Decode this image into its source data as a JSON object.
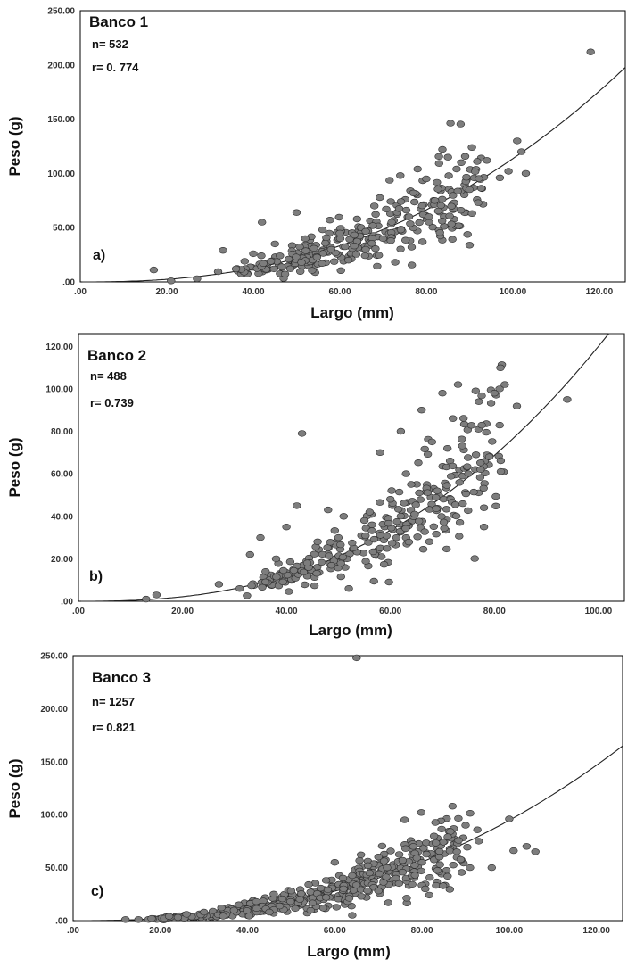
{
  "chart_data": [
    {
      "type": "scatter",
      "title": "Banco 1",
      "stats": {
        "n": "n= 532",
        "r": "r= 0. 774"
      },
      "panel_label": "a)",
      "xlabel": "Largo (mm)",
      "ylabel": "Peso (g)",
      "xlim": [
        0,
        126
      ],
      "ylim": [
        0,
        250
      ],
      "xticks": [
        ".00",
        "20.00",
        "40.00",
        "60.00",
        "80.00",
        "100.00",
        "120.00"
      ],
      "yticks": [
        ".00",
        "50.00",
        "100.00",
        "150.00",
        "200.00",
        "250.00"
      ],
      "fit": {
        "a": 0.0018,
        "b": 2.4
      },
      "points": [
        [
          17,
          11
        ],
        [
          21,
          1
        ],
        [
          27,
          3
        ],
        [
          33,
          29
        ],
        [
          38,
          19
        ],
        [
          42,
          55
        ],
        [
          50,
          64
        ],
        [
          54,
          31
        ],
        [
          58,
          30
        ],
        [
          60,
          45
        ],
        [
          62,
          20
        ],
        [
          64,
          58
        ],
        [
          66,
          30
        ],
        [
          68,
          70
        ],
        [
          72,
          55
        ],
        [
          74,
          98
        ],
        [
          76,
          60
        ],
        [
          78,
          104
        ],
        [
          80,
          95
        ],
        [
          82,
          75
        ],
        [
          85,
          115
        ],
        [
          87,
          104
        ],
        [
          88,
          66
        ],
        [
          90,
          85
        ],
        [
          92,
          73
        ],
        [
          94,
          112
        ],
        [
          97,
          96
        ],
        [
          99,
          102
        ],
        [
          101,
          130
        ],
        [
          102,
          120
        ],
        [
          103,
          100
        ],
        [
          118,
          212
        ],
        [
          36,
          12
        ],
        [
          40,
          26
        ],
        [
          45,
          35
        ],
        [
          52,
          40
        ],
        [
          56,
          48
        ],
        [
          70,
          40
        ],
        [
          77,
          82
        ]
      ],
      "cloud": {
        "count": 300,
        "xmin": 33,
        "xmax": 92,
        "spread": 0.3,
        "seed": 11
      }
    },
    {
      "type": "scatter",
      "title": "Banco 2",
      "stats": {
        "n": "n= 488",
        "r": "r= 0.739"
      },
      "panel_label": "b)",
      "xlabel": "Largo (mm)",
      "ylabel": "Peso (g)",
      "xlim": [
        0,
        105
      ],
      "ylim": [
        0,
        126
      ],
      "xticks": [
        ".00",
        "20.00",
        "40.00",
        "60.00",
        "80.00",
        "100.00"
      ],
      "yticks": [
        ".00",
        "20.00",
        "40.00",
        "60.00",
        "80.00",
        "100.00",
        "120.00"
      ],
      "fit": {
        "a": 0.0012,
        "b": 2.5
      },
      "points": [
        [
          13,
          1
        ],
        [
          15,
          3
        ],
        [
          27,
          8
        ],
        [
          31,
          6
        ],
        [
          33,
          22
        ],
        [
          35,
          30
        ],
        [
          38,
          20
        ],
        [
          40,
          35
        ],
        [
          42,
          45
        ],
        [
          43,
          79
        ],
        [
          46,
          28
        ],
        [
          48,
          43
        ],
        [
          51,
          40
        ],
        [
          52,
          6
        ],
        [
          55,
          38
        ],
        [
          58,
          70
        ],
        [
          60,
          48
        ],
        [
          62,
          80
        ],
        [
          64,
          55
        ],
        [
          66,
          90
        ],
        [
          68,
          75
        ],
        [
          70,
          98
        ],
        [
          72,
          86
        ],
        [
          73,
          102
        ],
        [
          75,
          60
        ],
        [
          77,
          94
        ],
        [
          78,
          35
        ],
        [
          79,
          68
        ],
        [
          80,
          98
        ],
        [
          81,
          100
        ],
        [
          82,
          102
        ],
        [
          94,
          95
        ],
        [
          36,
          14
        ],
        [
          44,
          18
        ],
        [
          50,
          30
        ],
        [
          56,
          42
        ],
        [
          63,
          60
        ],
        [
          69,
          52
        ],
        [
          78,
          44
        ]
      ],
      "cloud": {
        "count": 280,
        "xmin": 34,
        "xmax": 82,
        "spread": 0.25,
        "seed": 23
      }
    },
    {
      "type": "scatter",
      "title": "Banco 3",
      "stats": {
        "n": "n= 1257",
        "r": "r= 0.821"
      },
      "panel_label": "c)",
      "xlabel": "Largo (mm)",
      "ylabel": "Peso (g)",
      "xlim": [
        0,
        126
      ],
      "ylim": [
        0,
        250
      ],
      "xticks": [
        ".00",
        "20.00",
        "40.00",
        "60.00",
        "80.00",
        "100.00",
        "120.00"
      ],
      "yticks": [
        ".00",
        "50.00",
        "100.00",
        "150.00",
        "200.00",
        "250.00"
      ],
      "fit": {
        "a": 0.0015,
        "b": 2.4
      },
      "points": [
        [
          12,
          1
        ],
        [
          15,
          1
        ],
        [
          18,
          2
        ],
        [
          22,
          4
        ],
        [
          26,
          6
        ],
        [
          30,
          8
        ],
        [
          34,
          12
        ],
        [
          38,
          15
        ],
        [
          42,
          18
        ],
        [
          46,
          25
        ],
        [
          50,
          28
        ],
        [
          54,
          34
        ],
        [
          58,
          38
        ],
        [
          60,
          55
        ],
        [
          64,
          5
        ],
        [
          65,
          248
        ],
        [
          66,
          62
        ],
        [
          68,
          45
        ],
        [
          70,
          60
        ],
        [
          72,
          50
        ],
        [
          74,
          40
        ],
        [
          76,
          95
        ],
        [
          78,
          70
        ],
        [
          80,
          55
        ],
        [
          84,
          60
        ],
        [
          87,
          108
        ],
        [
          88,
          65
        ],
        [
          90,
          90
        ],
        [
          91,
          50
        ],
        [
          93,
          75
        ],
        [
          96,
          50
        ],
        [
          100,
          96
        ],
        [
          101,
          66
        ],
        [
          104,
          70
        ],
        [
          106,
          65
        ],
        [
          45,
          8
        ],
        [
          52,
          20
        ],
        [
          58,
          22
        ],
        [
          62,
          30
        ],
        [
          70,
          28
        ]
      ],
      "cloud": {
        "count": 420,
        "xmin": 18,
        "xmax": 90,
        "spread": 0.28,
        "seed": 37
      }
    }
  ]
}
